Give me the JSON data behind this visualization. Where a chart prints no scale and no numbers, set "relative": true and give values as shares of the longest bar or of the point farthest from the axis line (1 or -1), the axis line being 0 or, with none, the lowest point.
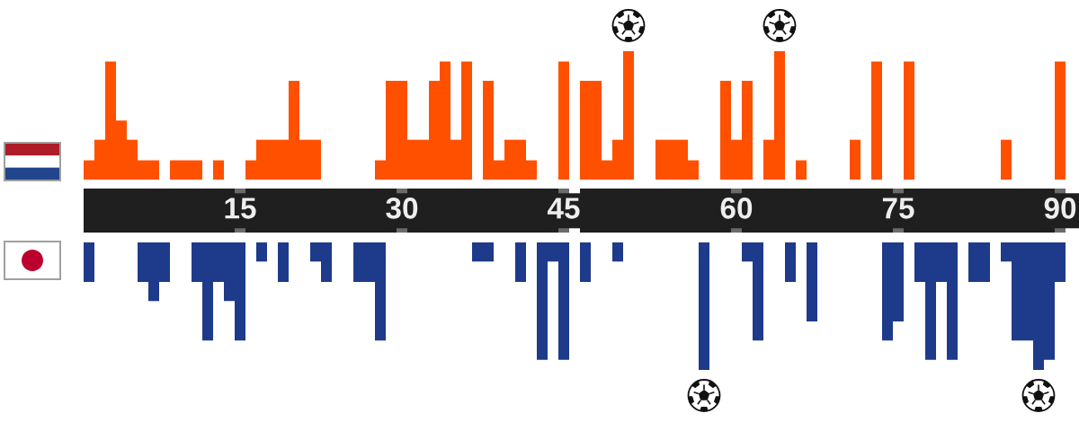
{
  "chart_data": [
    {
      "type": "bar",
      "relative": true,
      "tick_labels": "x",
      "categories": [
        null,
        null,
        null,
        null,
        null,
        null,
        null,
        null,
        null,
        null,
        null,
        null,
        null,
        null,
        "15",
        null,
        null,
        null,
        null,
        null,
        null,
        null,
        null,
        null,
        null,
        null,
        null,
        null,
        null,
        "30",
        null,
        null,
        null,
        null,
        null,
        null,
        null,
        null,
        null,
        null,
        null,
        null,
        null,
        null,
        "45",
        null,
        null,
        null,
        null,
        null,
        null,
        null,
        null,
        null,
        null,
        null,
        null,
        null,
        null,
        null,
        "60",
        null,
        null,
        null,
        null,
        null,
        null,
        null,
        null,
        null,
        null,
        null,
        null,
        null,
        null,
        "75",
        null,
        null,
        null,
        null,
        null,
        null,
        null,
        null,
        null,
        null,
        null,
        null,
        null,
        null,
        "90"
      ],
      "series": [
        {
          "color": "#ff5000",
          "values": [
            0.15,
            0.31,
            0.92,
            0.46,
            0.31,
            0.15,
            0.15,
            null,
            0.15,
            0.15,
            0.15,
            null,
            0.15,
            null,
            null,
            0.15,
            0.31,
            0.31,
            0.31,
            0.77,
            0.31,
            0.31,
            null,
            null,
            null,
            null,
            null,
            0.15,
            0.77,
            0.77,
            0.31,
            0.31,
            0.77,
            0.92,
            0.31,
            0.92,
            null,
            0.77,
            0.15,
            0.31,
            0.31,
            0.15,
            null,
            null,
            0.92,
            null,
            0.77,
            0.77,
            0.15,
            0.31,
            1,
            null,
            null,
            0.31,
            0.31,
            0.31,
            0.15,
            null,
            null,
            0.77,
            0.31,
            0.77,
            null,
            0.31,
            1,
            null,
            0.15,
            null,
            null,
            null,
            null,
            0.31,
            null,
            0.92,
            null,
            null,
            0.92,
            null,
            null,
            null,
            null,
            null,
            null,
            null,
            null,
            0.31,
            null,
            null,
            null,
            null,
            0.92
          ]
        }
      ]
    },
    {
      "type": "bar",
      "relative": true,
      "tick_labels": false,
      "categories": [
        null,
        null,
        null,
        null,
        null,
        null,
        null,
        null,
        null,
        null,
        null,
        null,
        null,
        null,
        "15",
        null,
        null,
        null,
        null,
        null,
        null,
        null,
        null,
        null,
        null,
        null,
        null,
        null,
        null,
        "30",
        null,
        null,
        null,
        null,
        null,
        null,
        null,
        null,
        null,
        null,
        null,
        null,
        null,
        null,
        "45",
        null,
        null,
        null,
        null,
        null,
        null,
        null,
        null,
        null,
        null,
        null,
        null,
        null,
        null,
        null,
        "60",
        null,
        null,
        null,
        null,
        null,
        null,
        null,
        null,
        null,
        null,
        null,
        null,
        null,
        null,
        "75",
        null,
        null,
        null,
        null,
        null,
        null,
        null,
        null,
        null,
        null,
        null,
        null,
        null,
        null,
        "90"
      ],
      "series": [
        {
          "color": "#1e3a8a",
          "values": [
            -0.31,
            null,
            null,
            null,
            null,
            -0.31,
            -0.46,
            -0.31,
            null,
            null,
            -0.31,
            -0.77,
            -0.31,
            -0.46,
            -0.77,
            null,
            -0.15,
            null,
            -0.31,
            null,
            null,
            -0.15,
            -0.31,
            null,
            null,
            -0.31,
            -0.31,
            -0.77,
            null,
            null,
            null,
            null,
            null,
            null,
            null,
            null,
            -0.15,
            -0.15,
            null,
            null,
            -0.31,
            null,
            -0.92,
            -0.15,
            -0.92,
            null,
            -0.31,
            null,
            null,
            -0.15,
            null,
            null,
            null,
            null,
            null,
            null,
            null,
            -1,
            null,
            null,
            null,
            -0.15,
            -0.77,
            null,
            null,
            -0.31,
            null,
            -0.62,
            null,
            null,
            null,
            null,
            null,
            null,
            -0.77,
            -0.62,
            null,
            -0.31,
            -0.92,
            -0.31,
            -0.92,
            null,
            -0.31,
            -0.31,
            null,
            -0.15,
            -0.77,
            -0.77,
            -1,
            -0.92,
            -0.31
          ]
        }
      ]
    }
  ]
}
